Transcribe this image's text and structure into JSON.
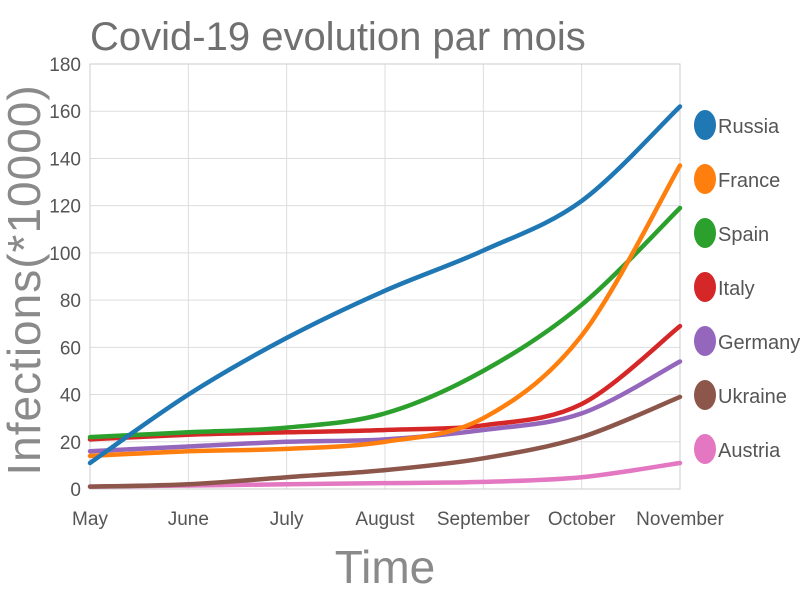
{
  "chart_data": {
    "type": "line",
    "title": "Covid-19 evolution par mois",
    "xlabel": "Time",
    "ylabel": "Infections(*10000)",
    "categories": [
      "May",
      "June",
      "July",
      "August",
      "September",
      "October",
      "November"
    ],
    "y_ticks": [
      "0",
      "20",
      "40",
      "60",
      "80",
      "100",
      "120",
      "140",
      "160",
      "180"
    ],
    "ylim": [
      0,
      180
    ],
    "grid": true,
    "legend_position": "right",
    "series": [
      {
        "name": "Russia",
        "color": "#1f77b4",
        "values": [
          11,
          40,
          64,
          84,
          101,
          122,
          162
        ]
      },
      {
        "name": "France",
        "color": "#ff7f0e",
        "values": [
          14,
          16,
          17,
          20,
          30,
          65,
          137
        ]
      },
      {
        "name": "Spain",
        "color": "#2ca02c",
        "values": [
          22,
          24,
          26,
          32,
          50,
          78,
          119
        ]
      },
      {
        "name": "Italy",
        "color": "#d62728",
        "values": [
          21,
          23,
          24,
          25,
          27,
          36,
          69
        ]
      },
      {
        "name": "Germany",
        "color": "#9467bd",
        "values": [
          16,
          18,
          20,
          21,
          25,
          32,
          54
        ]
      },
      {
        "name": "Ukraine",
        "color": "#8c564b",
        "values": [
          1,
          2,
          5,
          8,
          13,
          22,
          39
        ]
      },
      {
        "name": "Austria",
        "color": "#e377c2",
        "values": [
          1,
          1.5,
          2,
          2.5,
          3,
          5,
          11
        ]
      }
    ]
  }
}
